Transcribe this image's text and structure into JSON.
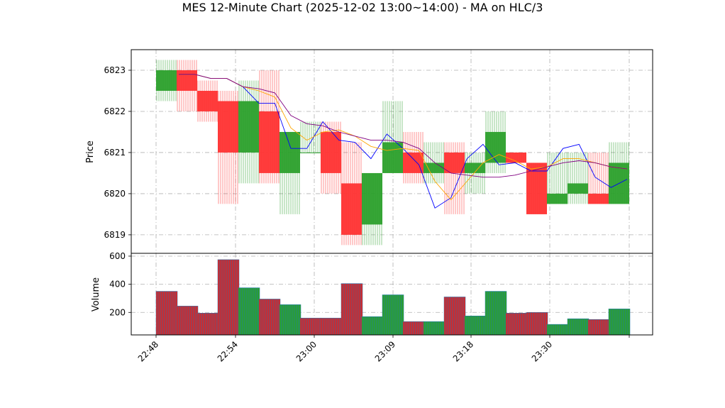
{
  "chart_data": [
    {
      "type": "candlestick",
      "title": "MES 12-Minute Chart (2025-12-02 13:00~14:00) - MA on HLC/3",
      "ylabel": "Price",
      "xlabel": "",
      "x_tick_labels": [
        "22:48",
        "22:54",
        "23:00",
        "23:09",
        "23:18",
        "23:30"
      ],
      "y_ticks": [
        6819,
        6820,
        6821,
        6822,
        6823
      ],
      "ylim": [
        6818.55,
        6823.5
      ],
      "grid": true,
      "up_color": "#2ca02c",
      "down_color": "#ff3333",
      "bars": [
        {
          "o": 6822.5,
          "h": 6823.25,
          "l": 6822.25,
          "c": 6823.0,
          "w": 11
        },
        {
          "o": 6823.0,
          "h": 6823.25,
          "l": 6822.0,
          "c": 6822.5,
          "w": 11
        },
        {
          "o": 6822.5,
          "h": 6822.75,
          "l": 6821.75,
          "c": 6822.0,
          "w": 11
        },
        {
          "o": 6822.25,
          "h": 6822.5,
          "l": 6819.75,
          "c": 6821.0,
          "w": 11
        },
        {
          "o": 6821.0,
          "h": 6822.75,
          "l": 6820.25,
          "c": 6822.25,
          "w": 11
        },
        {
          "o": 6822.0,
          "h": 6823.0,
          "l": 6820.25,
          "c": 6820.5,
          "w": 11
        },
        {
          "o": 6820.5,
          "h": 6821.5,
          "l": 6819.5,
          "c": 6821.5,
          "w": 11
        },
        {
          "o": 6821.0,
          "h": 6821.75,
          "l": 6821.0,
          "c": 6821.0,
          "w": 11
        },
        {
          "o": 6821.5,
          "h": 6821.75,
          "l": 6820.0,
          "c": 6820.5,
          "w": 11
        },
        {
          "o": 6820.25,
          "h": 6821.25,
          "l": 6818.75,
          "c": 6819.0,
          "w": 11
        },
        {
          "o": 6819.25,
          "h": 6820.5,
          "l": 6818.75,
          "c": 6820.5,
          "w": 11
        },
        {
          "o": 6820.5,
          "h": 6822.25,
          "l": 6820.5,
          "c": 6821.25,
          "w": 11
        },
        {
          "o": 6821.0,
          "h": 6821.5,
          "l": 6820.25,
          "c": 6820.5,
          "w": 11
        },
        {
          "o": 6820.5,
          "h": 6821.25,
          "l": 6820.25,
          "c": 6820.75,
          "w": 11
        },
        {
          "o": 6821.0,
          "h": 6821.25,
          "l": 6819.5,
          "c": 6820.5,
          "w": 11
        },
        {
          "o": 6820.5,
          "h": 6821.0,
          "l": 6820.0,
          "c": 6820.75,
          "w": 11
        },
        {
          "o": 6820.75,
          "h": 6822.0,
          "l": 6820.5,
          "c": 6821.5,
          "w": 11
        },
        {
          "o": 6821.0,
          "h": 6821.0,
          "l": 6820.75,
          "c": 6820.75,
          "w": 11
        },
        {
          "o": 6820.75,
          "h": 6820.75,
          "l": 6819.5,
          "c": 6819.5,
          "w": 11
        },
        {
          "o": 6819.75,
          "h": 6821.0,
          "l": 6819.75,
          "c": 6820.0,
          "w": 11
        },
        {
          "o": 6820.0,
          "h": 6821.0,
          "l": 6819.75,
          "c": 6820.25,
          "w": 11
        },
        {
          "o": 6820.0,
          "h": 6821.0,
          "l": 6819.75,
          "c": 6819.75,
          "w": 11
        },
        {
          "o": 6819.75,
          "h": 6821.25,
          "l": 6819.75,
          "c": 6820.75,
          "w": 11
        }
      ],
      "ma_lines": [
        {
          "color": "#0000ff",
          "values": [
            6822.9,
            6822.9,
            6822.8,
            6822.8,
            6822.6,
            6822.2,
            6822.2,
            6821.1,
            6821.1,
            6821.75,
            6821.3,
            6821.25,
            6820.85,
            6821.45,
            6821.1,
            6820.7,
            6819.65,
            6819.9,
            6820.85,
            6821.2,
            6820.7,
            6820.75,
            6820.55,
            6820.55,
            6821.1,
            6821.2,
            6820.4,
            6820.15,
            6820.35
          ]
        },
        {
          "color": "#ffa500",
          "values": [
            6822.9,
            6822.9,
            6822.8,
            6822.8,
            6822.6,
            6822.5,
            6822.35,
            6821.6,
            6821.3,
            6821.5,
            6821.55,
            6821.4,
            6821.15,
            6821.05,
            6821.1,
            6821.05,
            6820.3,
            6819.85,
            6820.3,
            6820.75,
            6820.95,
            6820.8,
            6820.6,
            6820.65,
            6820.85,
            6820.85,
            6820.75,
            6820.65,
            6820.6
          ]
        },
        {
          "color": "#800080",
          "values": [
            6822.9,
            6822.9,
            6822.8,
            6822.8,
            6822.6,
            6822.55,
            6822.45,
            6821.9,
            6821.7,
            6821.65,
            6821.5,
            6821.4,
            6821.3,
            6821.3,
            6821.25,
            6821.1,
            6820.75,
            6820.5,
            6820.45,
            6820.4,
            6820.4,
            6820.45,
            6820.55,
            6820.65,
            6820.75,
            6820.8,
            6820.75,
            6820.65,
            6820.6
          ]
        }
      ]
    },
    {
      "type": "bar",
      "ylabel": "Volume",
      "y_ticks": [
        200,
        400,
        600
      ],
      "ylim": [
        40,
        620
      ],
      "grid": true,
      "values": [
        350,
        245,
        195,
        575,
        375,
        295,
        255,
        160,
        160,
        405,
        170,
        325,
        135,
        135,
        310,
        175,
        350,
        195,
        200,
        115,
        155,
        150,
        225
      ],
      "colors": [
        "#d62728",
        "#d62728",
        "#d62728",
        "#d62728",
        "#2ca02c",
        "#d62728",
        "#2ca02c",
        "#d62728",
        "#d62728",
        "#d62728",
        "#2ca02c",
        "#2ca02c",
        "#d62728",
        "#2ca02c",
        "#d62728",
        "#2ca02c",
        "#2ca02c",
        "#d62728",
        "#d62728",
        "#2ca02c",
        "#2ca02c",
        "#d62728",
        "#2ca02c"
      ],
      "edge_color": "#1f77b4"
    }
  ]
}
